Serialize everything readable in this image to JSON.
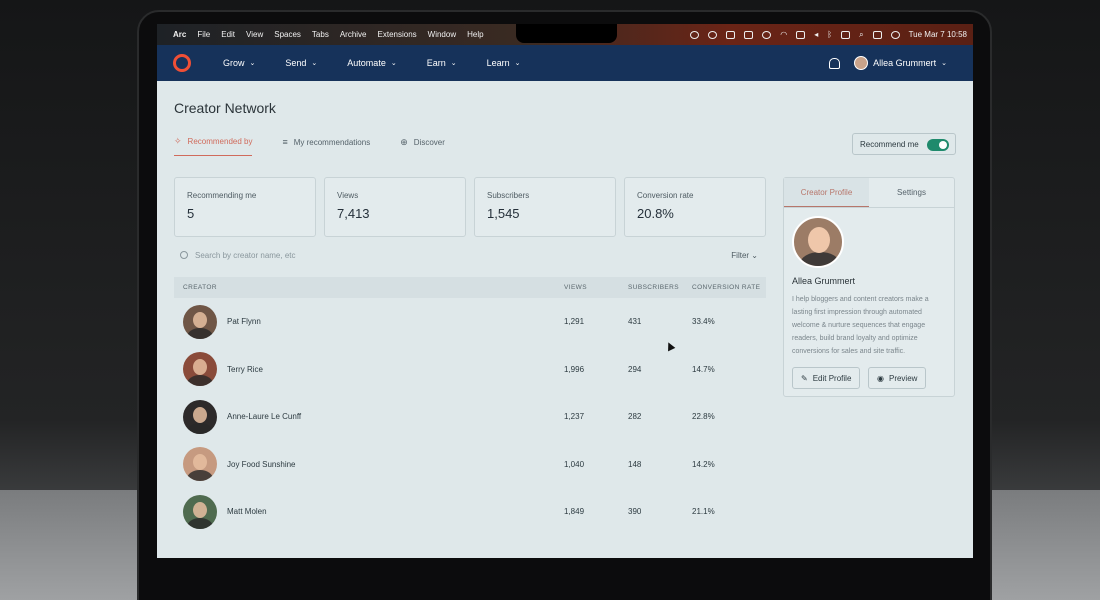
{
  "menubar": {
    "app_name": "Arc",
    "items": [
      "File",
      "Edit",
      "View",
      "Spaces",
      "Tabs",
      "Archive",
      "Extensions",
      "Window",
      "Help"
    ],
    "datetime": "Tue Mar 7  10:58"
  },
  "nav": {
    "items": [
      {
        "label": "Grow"
      },
      {
        "label": "Send"
      },
      {
        "label": "Automate"
      },
      {
        "label": "Earn"
      },
      {
        "label": "Learn"
      }
    ],
    "user_name": "Allea Grummert"
  },
  "page": {
    "title": "Creator Network",
    "tabs": [
      {
        "label": "Recommended by",
        "active": true
      },
      {
        "label": "My recommendations",
        "active": false
      },
      {
        "label": "Discover",
        "active": false
      }
    ],
    "recommend_me_label": "Recommend me",
    "recommend_me_on": true
  },
  "stats": [
    {
      "label": "Recommending me",
      "value": "5"
    },
    {
      "label": "Views",
      "value": "7,413"
    },
    {
      "label": "Subscribers",
      "value": "1,545"
    },
    {
      "label": "Conversion rate",
      "value": "20.8%"
    }
  ],
  "search": {
    "placeholder": "Search by creator name, etc",
    "filter_label": "Filter"
  },
  "table": {
    "headers": {
      "creator": "CREATOR",
      "views": "VIEWS",
      "subscribers": "SUBSCRIBERS",
      "conversion": "CONVERSION RATE"
    },
    "rows": [
      {
        "name": "Pat Flynn",
        "views": "1,291",
        "subscribers": "431",
        "conversion": "33.4%"
      },
      {
        "name": "Terry Rice",
        "views": "1,996",
        "subscribers": "294",
        "conversion": "14.7%"
      },
      {
        "name": "Anne-Laure Le Cunff",
        "views": "1,237",
        "subscribers": "282",
        "conversion": "22.8%"
      },
      {
        "name": "Joy Food Sunshine",
        "views": "1,040",
        "subscribers": "148",
        "conversion": "14.2%"
      },
      {
        "name": "Matt Molen",
        "views": "1,849",
        "subscribers": "390",
        "conversion": "21.1%"
      }
    ]
  },
  "profile": {
    "tabs": [
      {
        "label": "Creator Profile",
        "active": true
      },
      {
        "label": "Settings",
        "active": false
      }
    ],
    "name": "Allea Grummert",
    "bio": "I help bloggers and content creators make a lasting first impression through automated welcome & nurture sequences that engage readers, build brand loyalty and optimize conversions for sales and site traffic.",
    "edit_label": "Edit Profile",
    "preview_label": "Preview"
  },
  "colors": {
    "nav_bg": "#16325a",
    "accent": "#d06b5c",
    "toggle_on": "#1f8a6c",
    "logo": "#ef4f36"
  }
}
